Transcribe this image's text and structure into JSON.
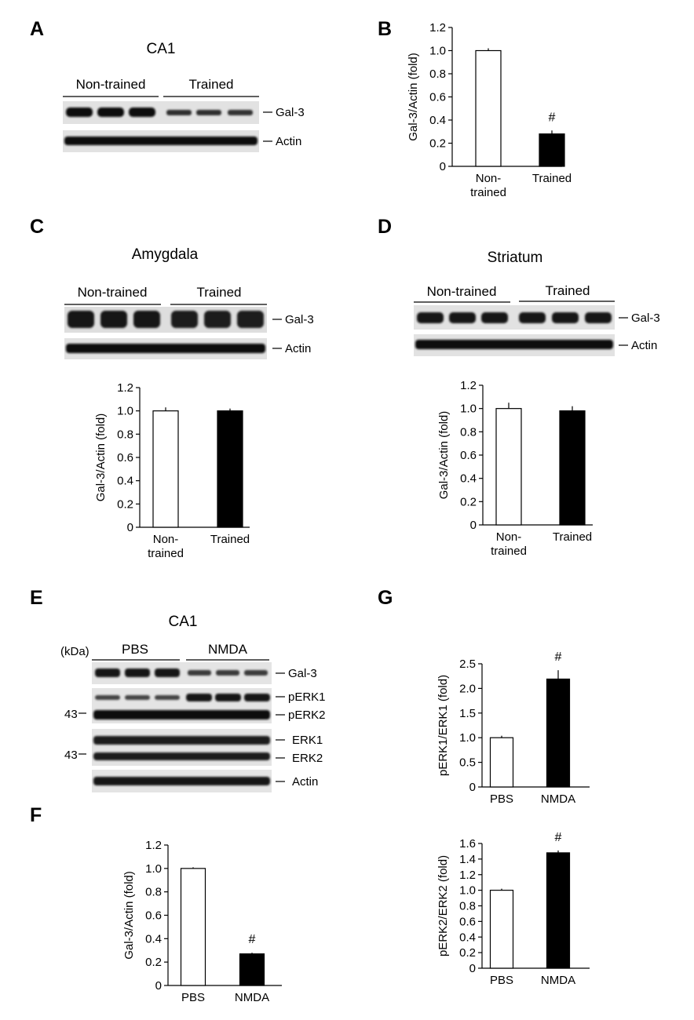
{
  "panel_letters": [
    "A",
    "B",
    "C",
    "D",
    "E",
    "F",
    "G"
  ],
  "blots": {
    "A": {
      "title": "CA1",
      "groups": [
        "Non-trained",
        "Trained"
      ],
      "bands": [
        "Gal-3",
        "Actin"
      ]
    },
    "C": {
      "title": "Amygdala",
      "groups": [
        "Non-trained",
        "Trained"
      ],
      "bands": [
        "Gal-3",
        "Actin"
      ]
    },
    "D": {
      "title": "Striatum",
      "groups": [
        "Non-trained",
        "Trained"
      ],
      "bands": [
        "Gal-3",
        "Actin"
      ]
    },
    "E": {
      "title": "CA1",
      "groups": [
        "PBS",
        "NMDA"
      ],
      "unit": "(kDa)",
      "marker": "43",
      "bands": [
        "Gal-3",
        "pERK1",
        "pERK2",
        "ERK1",
        "ERK2",
        "Actin"
      ]
    }
  },
  "chart_data": [
    {
      "panel": "B",
      "type": "bar",
      "categories": [
        "Non-trained",
        "Trained"
      ],
      "values": [
        1.0,
        0.28
      ],
      "errors": [
        0.02,
        0.03
      ],
      "colors": [
        "#ffffff",
        "#000000"
      ],
      "ylabel": "Gal-3/Actin (fold)",
      "ylim": [
        0,
        1.2
      ],
      "yticks": [
        "0",
        "0.2",
        "0.4",
        "0.6",
        "0.8",
        "1.0",
        "1.2"
      ],
      "annotations": [
        {
          "category": "Trained",
          "text": "#"
        }
      ]
    },
    {
      "panel": "C",
      "type": "bar",
      "categories": [
        "Non-trained",
        "Trained"
      ],
      "values": [
        1.0,
        1.0
      ],
      "errors": [
        0.03,
        0.02
      ],
      "colors": [
        "#ffffff",
        "#000000"
      ],
      "ylabel": "Gal-3/Actin (fold)",
      "ylim": [
        0,
        1.2
      ],
      "yticks": [
        "0",
        "0.2",
        "0.4",
        "0.6",
        "0.8",
        "1.0",
        "1.2"
      ],
      "annotations": []
    },
    {
      "panel": "D",
      "type": "bar",
      "categories": [
        "Non-trained",
        "Trained"
      ],
      "values": [
        1.0,
        0.98
      ],
      "errors": [
        0.05,
        0.04
      ],
      "colors": [
        "#ffffff",
        "#000000"
      ],
      "ylabel": "Gal-3/Actin (fold)",
      "ylim": [
        0,
        1.2
      ],
      "yticks": [
        "0",
        "0.2",
        "0.4",
        "0.6",
        "0.8",
        "1.0",
        "1.2"
      ],
      "annotations": []
    },
    {
      "panel": "F",
      "type": "bar",
      "categories": [
        "PBS",
        "NMDA"
      ],
      "values": [
        1.0,
        0.27
      ],
      "errors": [
        0.01,
        0.01
      ],
      "colors": [
        "#ffffff",
        "#000000"
      ],
      "ylabel": "Gal-3/Actin (fold)",
      "ylim": [
        0,
        1.2
      ],
      "yticks": [
        "0",
        "0.2",
        "0.4",
        "0.6",
        "0.8",
        "1.0",
        "1.2"
      ],
      "annotations": [
        {
          "category": "NMDA",
          "text": "#"
        }
      ]
    },
    {
      "panel": "G-top",
      "type": "bar",
      "categories": [
        "PBS",
        "NMDA"
      ],
      "values": [
        1.0,
        2.19
      ],
      "errors": [
        0.04,
        0.18
      ],
      "colors": [
        "#ffffff",
        "#000000"
      ],
      "ylabel": "pERK1/ERK1 (fold)",
      "ylim": [
        0,
        2.5
      ],
      "yticks": [
        "0",
        "0.5",
        "1.0",
        "1.5",
        "2.0",
        "2.5"
      ],
      "annotations": [
        {
          "category": "NMDA",
          "text": "#"
        }
      ]
    },
    {
      "panel": "G-bottom",
      "type": "bar",
      "categories": [
        "PBS",
        "NMDA"
      ],
      "values": [
        1.0,
        1.48
      ],
      "errors": [
        0.02,
        0.03
      ],
      "colors": [
        "#ffffff",
        "#000000"
      ],
      "ylabel": "pERK2/ERK2 (fold)",
      "ylim": [
        0,
        1.6
      ],
      "yticks": [
        "0",
        "0.2",
        "0.4",
        "0.6",
        "0.8",
        "1.0",
        "1.2",
        "1.4",
        "1.6"
      ],
      "annotations": [
        {
          "category": "NMDA",
          "text": "#"
        }
      ]
    }
  ]
}
